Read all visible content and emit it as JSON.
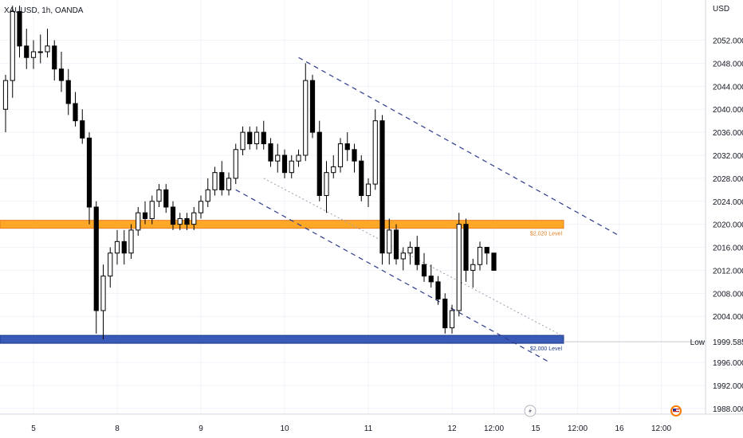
{
  "chart_data": {
    "type": "candlestick",
    "symbol": "XAUUSD, 1h, OANDA",
    "currency": "USD",
    "price_range": [
      1987,
      2059
    ],
    "y_ticks": [
      "2052.000",
      "2048.000",
      "2044.000",
      "2040.000",
      "2036.000",
      "2032.000",
      "2028.000",
      "2024.000",
      "2020.000",
      "2016.000",
      "2012.000",
      "2008.000",
      "2004.000",
      "1996.000",
      "1992.000",
      "1988.000"
    ],
    "x_ticks": [
      {
        "label": "5",
        "bar": 4
      },
      {
        "label": "8",
        "bar": 16
      },
      {
        "label": "9",
        "bar": 28
      },
      {
        "label": "10",
        "bar": 40
      },
      {
        "label": "11",
        "bar": 52
      },
      {
        "label": "12",
        "bar": 64
      },
      {
        "label": "12:00",
        "bar": 70
      },
      {
        "label": "15",
        "bar": 76
      },
      {
        "label": "12:00",
        "bar": 82
      },
      {
        "label": "16",
        "bar": 88
      },
      {
        "label": "12:00",
        "bar": 94
      }
    ],
    "low_marker": {
      "label": "Low",
      "price": 1999.585,
      "value_text": "1999.585"
    },
    "levels": [
      {
        "name": "$2,020 Level",
        "price": 2020.0,
        "color": "#FFA726"
      },
      {
        "name": "$2,000 Level",
        "price": 2000.0,
        "color": "#3A5AB8"
      }
    ],
    "channel": {
      "upper_start": {
        "bar": 42,
        "price": 2049.0
      },
      "upper_end": {
        "bar": 88,
        "price": 2018.0
      },
      "lower_start": {
        "bar": 33,
        "price": 2026.0
      },
      "lower_end": {
        "bar": 78,
        "price": 1996.0
      },
      "mid_start": {
        "bar": 37,
        "price": 2028.0
      },
      "mid_end": {
        "bar": 80,
        "price": 2000.5
      }
    },
    "candles": [
      [
        2040,
        2046,
        2036,
        2045
      ],
      [
        2045,
        2058,
        2042,
        2057
      ],
      [
        2057,
        2058,
        2049,
        2051
      ],
      [
        2051,
        2054,
        2047,
        2049
      ],
      [
        2049,
        2052,
        2047,
        2050
      ],
      [
        2050,
        2053,
        2048,
        2050
      ],
      [
        2050,
        2054,
        2049,
        2051
      ],
      [
        2051,
        2052,
        2045,
        2047
      ],
      [
        2047,
        2050,
        2043,
        2045
      ],
      [
        2045,
        2047,
        2039,
        2041
      ],
      [
        2041,
        2043,
        2037,
        2038
      ],
      [
        2038,
        2040,
        2034,
        2035
      ],
      [
        2035,
        2036,
        2020,
        2023
      ],
      [
        2023,
        2024,
        2001,
        2005
      ],
      [
        2005,
        2013,
        2000,
        2011
      ],
      [
        2011,
        2016,
        2009,
        2015
      ],
      [
        2015,
        2019,
        2013,
        2017
      ],
      [
        2017,
        2019,
        2013,
        2015
      ],
      [
        2015,
        2020,
        2014,
        2019
      ],
      [
        2019,
        2023,
        2018,
        2022
      ],
      [
        2022,
        2024,
        2020,
        2021
      ],
      [
        2021,
        2025,
        2020,
        2024
      ],
      [
        2024,
        2027,
        2023,
        2026
      ],
      [
        2026,
        2027,
        2022,
        2023
      ],
      [
        2023,
        2024,
        2019,
        2020
      ],
      [
        2020,
        2022,
        2019,
        2021
      ],
      [
        2021,
        2022,
        2019,
        2020
      ],
      [
        2020,
        2023,
        2019,
        2022
      ],
      [
        2022,
        2025,
        2021,
        2024
      ],
      [
        2024,
        2028,
        2023,
        2026
      ],
      [
        2026,
        2030,
        2025,
        2029
      ],
      [
        2029,
        2031,
        2025,
        2026
      ],
      [
        2026,
        2029,
        2025,
        2028
      ],
      [
        2028,
        2034,
        2027,
        2033
      ],
      [
        2033,
        2037,
        2032,
        2036
      ],
      [
        2036,
        2037,
        2033,
        2034
      ],
      [
        2034,
        2037,
        2033,
        2036
      ],
      [
        2036,
        2038,
        2033,
        2034
      ],
      [
        2034,
        2035,
        2030,
        2031
      ],
      [
        2031,
        2034,
        2029,
        2032
      ],
      [
        2032,
        2033,
        2028,
        2029
      ],
      [
        2029,
        2032,
        2028,
        2031
      ],
      [
        2031,
        2033,
        2030,
        2032
      ],
      [
        2032,
        2048,
        2031,
        2045
      ],
      [
        2045,
        2046,
        2035,
        2036
      ],
      [
        2036,
        2038,
        2024,
        2025
      ],
      [
        2025,
        2031,
        2022,
        2029
      ],
      [
        2029,
        2032,
        2028,
        2030
      ],
      [
        2030,
        2035,
        2029,
        2034
      ],
      [
        2034,
        2036,
        2031,
        2033
      ],
      [
        2033,
        2034,
        2029,
        2031
      ],
      [
        2031,
        2032,
        2024,
        2025
      ],
      [
        2025,
        2028,
        2023,
        2027
      ],
      [
        2027,
        2040,
        2026,
        2038
      ],
      [
        2038,
        2039,
        2013,
        2015
      ],
      [
        2015,
        2021,
        2013,
        2019
      ],
      [
        2019,
        2020,
        2013,
        2014
      ],
      [
        2014,
        2016,
        2012,
        2015
      ],
      [
        2015,
        2017,
        2013,
        2016
      ],
      [
        2016,
        2018,
        2012,
        2013
      ],
      [
        2013,
        2015,
        2010,
        2011
      ],
      [
        2011,
        2013,
        2009,
        2010
      ],
      [
        2010,
        2011,
        2006,
        2007
      ],
      [
        2007,
        2008,
        2001,
        2002
      ],
      [
        2002,
        2006,
        2001,
        2005
      ],
      [
        2005,
        2022,
        2004,
        2020
      ],
      [
        2020,
        2021,
        2010,
        2012
      ],
      [
        2012,
        2014,
        2009,
        2013
      ],
      [
        2013,
        2017,
        2012,
        2016
      ],
      [
        2016,
        2016,
        2013,
        2015
      ],
      [
        2015,
        2015,
        2012,
        2012
      ]
    ]
  }
}
